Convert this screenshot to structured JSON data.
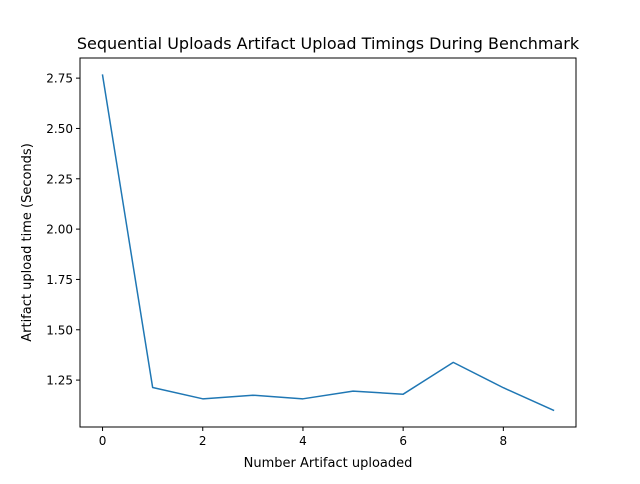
{
  "chart_data": {
    "type": "line",
    "title": "Sequential Uploads Artifact Upload Timings During Benchmark",
    "xlabel": "Number Artifact uploaded",
    "ylabel": "Artifact upload time (Seconds)",
    "xlim": [
      -0.45,
      9.45
    ],
    "ylim": [
      1.017,
      2.85
    ],
    "x_ticks": [
      0,
      2,
      4,
      6,
      8
    ],
    "y_ticks": [
      1.25,
      1.5,
      1.75,
      2.0,
      2.25,
      2.5,
      2.75
    ],
    "x_tick_labels": [
      "0",
      "2",
      "4",
      "6",
      "8"
    ],
    "y_tick_labels": [
      "1.25",
      "1.50",
      "1.75",
      "2.00",
      "2.25",
      "2.50",
      "2.75"
    ],
    "grid": false,
    "legend": "none",
    "series": [
      {
        "color": "#1f77b4",
        "x": [
          0,
          1,
          2,
          3,
          4,
          5,
          6,
          7,
          8,
          9
        ],
        "y": [
          2.765,
          1.213,
          1.157,
          1.175,
          1.157,
          1.195,
          1.18,
          1.338,
          1.212,
          1.1
        ]
      }
    ]
  }
}
